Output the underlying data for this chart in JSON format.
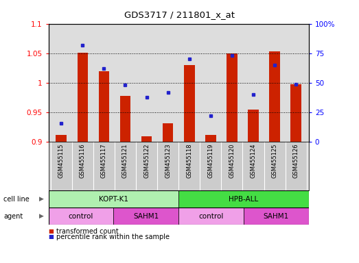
{
  "title": "GDS3717 / 211801_x_at",
  "samples": [
    "GSM455115",
    "GSM455116",
    "GSM455117",
    "GSM455121",
    "GSM455122",
    "GSM455123",
    "GSM455118",
    "GSM455119",
    "GSM455120",
    "GSM455124",
    "GSM455125",
    "GSM455126"
  ],
  "red_values": [
    0.912,
    1.051,
    1.02,
    0.978,
    0.91,
    0.932,
    1.03,
    0.912,
    1.05,
    0.955,
    1.053,
    0.998
  ],
  "blue_values_pct": [
    16,
    82,
    62,
    48,
    38,
    42,
    70,
    22,
    73,
    40,
    65,
    49
  ],
  "ylim_left": [
    0.9,
    1.1
  ],
  "ylim_right": [
    0,
    100
  ],
  "yticks_left": [
    0.9,
    0.95,
    1.0,
    1.05,
    1.1
  ],
  "yticks_right": [
    0,
    25,
    50,
    75,
    100
  ],
  "ytick_labels_left": [
    "0.9",
    "0.95",
    "1",
    "1.05",
    "1.1"
  ],
  "ytick_labels_right": [
    "0",
    "25",
    "50",
    "75",
    "100%"
  ],
  "cell_line_groups": [
    {
      "label": "KOPT-K1",
      "start": 0,
      "end": 6,
      "color": "#B0F0B0"
    },
    {
      "label": "HPB-ALL",
      "start": 6,
      "end": 12,
      "color": "#44DD44"
    }
  ],
  "agent_groups": [
    {
      "label": "control",
      "start": 0,
      "end": 3,
      "color": "#F0A0E8"
    },
    {
      "label": "SAHM1",
      "start": 3,
      "end": 6,
      "color": "#DD55CC"
    },
    {
      "label": "control",
      "start": 6,
      "end": 9,
      "color": "#F0A0E8"
    },
    {
      "label": "SAHM1",
      "start": 9,
      "end": 12,
      "color": "#DD55CC"
    }
  ],
  "red_color": "#CC2200",
  "blue_color": "#2222CC",
  "bar_width": 0.5,
  "plot_bg_color": "#DDDDDD",
  "legend_items": [
    "transformed count",
    "percentile rank within the sample"
  ],
  "fig_width": 5.23,
  "fig_height": 3.84
}
